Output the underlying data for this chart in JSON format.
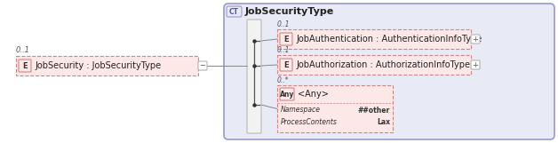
{
  "bg_color": "#ffffff",
  "ct_box_fill": "#e8eaf6",
  "ct_box_stroke": "#9999cc",
  "element_fill": "#fde8e8",
  "element_stroke": "#cc8888",
  "ct_label": "CT",
  "main_title": "JobSecurityType",
  "left_label": "JobSecurity : JobSecurityType",
  "left_multiplicity": "0..1",
  "items": [
    {
      "label": "JobAuthentication : AuthenticationInfoType",
      "multiplicity": "0..1",
      "type": "E",
      "has_plus": true
    },
    {
      "label": "JobAuthorization : AuthorizationInfoType",
      "multiplicity": "0..1",
      "type": "E",
      "has_plus": true
    },
    {
      "label": "<Any>",
      "multiplicity": "0..*",
      "type": "Any",
      "has_plus": false,
      "details": [
        [
          "Namespace",
          "##other"
        ],
        [
          "ProcessContents",
          "Lax"
        ]
      ]
    }
  ]
}
